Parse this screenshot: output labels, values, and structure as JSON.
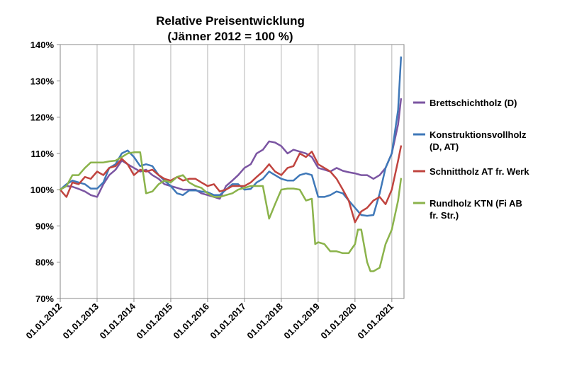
{
  "chart_data": {
    "type": "line",
    "title": "Relative Preisentwicklung",
    "subtitle": "(Jänner 2012 = 100 %)",
    "xlabel": "",
    "ylabel": "",
    "ylim": [
      70,
      140
    ],
    "yticks": [
      70,
      80,
      90,
      100,
      110,
      120,
      130,
      140
    ],
    "ytick_labels": [
      "70%",
      "80%",
      "90%",
      "100%",
      "110%",
      "120%",
      "130%",
      "140%"
    ],
    "xlim": [
      2012.0,
      2021.33
    ],
    "xticks": [
      2012,
      2013,
      2014,
      2015,
      2016,
      2017,
      2018,
      2019,
      2020,
      2021
    ],
    "xtick_labels": [
      "01.01.2012",
      "01.01.2013",
      "01.01.2014",
      "01.01.2015",
      "01.01.2016",
      "01.01.2017",
      "01.01.2018",
      "01.01.2019",
      "01.01.2020",
      "01.01.2021"
    ],
    "grid": "vertical",
    "legend_position": "right",
    "series": [
      {
        "name": "Brettschichtholz (D)",
        "color": "#7b55a2",
        "points": [
          [
            2012.0,
            100
          ],
          [
            2012.17,
            101
          ],
          [
            2012.33,
            100.8
          ],
          [
            2012.5,
            100.2
          ],
          [
            2012.67,
            99.5
          ],
          [
            2012.83,
            98.5
          ],
          [
            2013.0,
            98.0
          ],
          [
            2013.17,
            101.5
          ],
          [
            2013.33,
            104
          ],
          [
            2013.5,
            105.5
          ],
          [
            2013.67,
            108
          ],
          [
            2013.83,
            107
          ],
          [
            2014.0,
            106
          ],
          [
            2014.17,
            105
          ],
          [
            2014.33,
            105.5
          ],
          [
            2014.5,
            104
          ],
          [
            2014.67,
            103
          ],
          [
            2014.83,
            101.5
          ],
          [
            2015.0,
            101
          ],
          [
            2015.17,
            100.5
          ],
          [
            2015.33,
            100
          ],
          [
            2015.5,
            100
          ],
          [
            2015.67,
            100
          ],
          [
            2015.83,
            99
          ],
          [
            2016.0,
            98.5
          ],
          [
            2016.17,
            98
          ],
          [
            2016.33,
            97.5
          ],
          [
            2016.5,
            101
          ],
          [
            2016.67,
            102.5
          ],
          [
            2016.83,
            104
          ],
          [
            2017.0,
            106
          ],
          [
            2017.17,
            107
          ],
          [
            2017.33,
            110
          ],
          [
            2017.5,
            111
          ],
          [
            2017.67,
            113.3
          ],
          [
            2017.83,
            113
          ],
          [
            2018.0,
            112
          ],
          [
            2018.17,
            110
          ],
          [
            2018.33,
            111
          ],
          [
            2018.5,
            110.5
          ],
          [
            2018.67,
            110
          ],
          [
            2018.83,
            109
          ],
          [
            2019.0,
            106
          ],
          [
            2019.17,
            105.5
          ],
          [
            2019.33,
            105
          ],
          [
            2019.5,
            106
          ],
          [
            2019.67,
            105.2
          ],
          [
            2019.83,
            104.8
          ],
          [
            2020.0,
            104.5
          ],
          [
            2020.17,
            104
          ],
          [
            2020.33,
            104
          ],
          [
            2020.5,
            103
          ],
          [
            2020.67,
            104
          ],
          [
            2020.83,
            106
          ],
          [
            2021.0,
            110
          ],
          [
            2021.17,
            118
          ],
          [
            2021.25,
            125
          ]
        ]
      },
      {
        "name": "Konstruktionsvollholz (D, AT)",
        "color": "#3f78b8",
        "points": [
          [
            2012.0,
            100
          ],
          [
            2012.17,
            101.5
          ],
          [
            2012.33,
            102.5
          ],
          [
            2012.5,
            102
          ],
          [
            2012.67,
            101.5
          ],
          [
            2012.83,
            100.3
          ],
          [
            2013.0,
            100.3
          ],
          [
            2013.17,
            102
          ],
          [
            2013.33,
            106
          ],
          [
            2013.5,
            107
          ],
          [
            2013.67,
            110
          ],
          [
            2013.83,
            110.8
          ],
          [
            2014.0,
            109
          ],
          [
            2014.17,
            106.5
          ],
          [
            2014.33,
            107
          ],
          [
            2014.5,
            106.5
          ],
          [
            2014.67,
            104
          ],
          [
            2014.83,
            102.5
          ],
          [
            2015.0,
            101
          ],
          [
            2015.17,
            99
          ],
          [
            2015.33,
            98.5
          ],
          [
            2015.5,
            99.8
          ],
          [
            2015.67,
            99.8
          ],
          [
            2015.83,
            99.5
          ],
          [
            2016.0,
            99.3
          ],
          [
            2016.17,
            98.5
          ],
          [
            2016.33,
            98.5
          ],
          [
            2016.5,
            100
          ],
          [
            2016.67,
            101.5
          ],
          [
            2016.83,
            101.5
          ],
          [
            2017.0,
            100
          ],
          [
            2017.17,
            100.2
          ],
          [
            2017.33,
            102
          ],
          [
            2017.5,
            103
          ],
          [
            2017.67,
            105
          ],
          [
            2017.83,
            104
          ],
          [
            2018.0,
            103
          ],
          [
            2018.17,
            102.5
          ],
          [
            2018.33,
            102.5
          ],
          [
            2018.5,
            104
          ],
          [
            2018.67,
            104.5
          ],
          [
            2018.83,
            104
          ],
          [
            2019.0,
            98
          ],
          [
            2019.17,
            98
          ],
          [
            2019.33,
            98.5
          ],
          [
            2019.5,
            99.5
          ],
          [
            2019.67,
            99
          ],
          [
            2019.83,
            97
          ],
          [
            2020.0,
            95
          ],
          [
            2020.17,
            93
          ],
          [
            2020.33,
            92.8
          ],
          [
            2020.5,
            93
          ],
          [
            2020.67,
            99
          ],
          [
            2020.83,
            106
          ],
          [
            2021.0,
            110
          ],
          [
            2021.17,
            122
          ],
          [
            2021.25,
            136.5
          ]
        ]
      },
      {
        "name": "Schnittholz AT fr. Werk",
        "color": "#c0443f",
        "points": [
          [
            2012.0,
            100
          ],
          [
            2012.08,
            99
          ],
          [
            2012.17,
            98
          ],
          [
            2012.33,
            102
          ],
          [
            2012.5,
            101.5
          ],
          [
            2012.67,
            103.5
          ],
          [
            2012.83,
            103
          ],
          [
            2013.0,
            105
          ],
          [
            2013.17,
            104
          ],
          [
            2013.33,
            106
          ],
          [
            2013.5,
            106.5
          ],
          [
            2013.67,
            108.5
          ],
          [
            2013.83,
            107
          ],
          [
            2014.0,
            104
          ],
          [
            2014.17,
            105.5
          ],
          [
            2014.33,
            105
          ],
          [
            2014.5,
            105.5
          ],
          [
            2014.67,
            104
          ],
          [
            2014.83,
            103
          ],
          [
            2015.0,
            102.5
          ],
          [
            2015.17,
            103.5
          ],
          [
            2015.33,
            102.5
          ],
          [
            2015.5,
            103
          ],
          [
            2015.67,
            103
          ],
          [
            2015.83,
            102
          ],
          [
            2016.0,
            101
          ],
          [
            2016.17,
            101.5
          ],
          [
            2016.33,
            99.5
          ],
          [
            2016.5,
            100
          ],
          [
            2016.67,
            101
          ],
          [
            2016.83,
            101
          ],
          [
            2017.0,
            101
          ],
          [
            2017.17,
            102
          ],
          [
            2017.33,
            103.5
          ],
          [
            2017.5,
            105
          ],
          [
            2017.67,
            107
          ],
          [
            2017.83,
            105
          ],
          [
            2018.0,
            104
          ],
          [
            2018.17,
            106
          ],
          [
            2018.33,
            106.5
          ],
          [
            2018.5,
            110
          ],
          [
            2018.67,
            109
          ],
          [
            2018.83,
            110.5
          ],
          [
            2019.0,
            107
          ],
          [
            2019.17,
            106
          ],
          [
            2019.33,
            105
          ],
          [
            2019.5,
            103
          ],
          [
            2019.67,
            100
          ],
          [
            2019.83,
            97
          ],
          [
            2020.0,
            91
          ],
          [
            2020.17,
            94
          ],
          [
            2020.33,
            95
          ],
          [
            2020.5,
            97
          ],
          [
            2020.67,
            98
          ],
          [
            2020.83,
            96
          ],
          [
            2021.0,
            100
          ],
          [
            2021.17,
            108
          ],
          [
            2021.25,
            112
          ]
        ]
      },
      {
        "name": "Rundholz KTN (Fi AB fr. Str.)",
        "color": "#8bb34b",
        "points": [
          [
            2012.0,
            100
          ],
          [
            2012.17,
            101
          ],
          [
            2012.33,
            104
          ],
          [
            2012.5,
            104
          ],
          [
            2012.67,
            106
          ],
          [
            2012.83,
            107.5
          ],
          [
            2013.0,
            107.5
          ],
          [
            2013.17,
            107.5
          ],
          [
            2013.33,
            107.8
          ],
          [
            2013.5,
            108
          ],
          [
            2013.67,
            109
          ],
          [
            2013.83,
            110
          ],
          [
            2014.0,
            110.3
          ],
          [
            2014.17,
            110.3
          ],
          [
            2014.33,
            99
          ],
          [
            2014.5,
            99.5
          ],
          [
            2014.67,
            101.5
          ],
          [
            2014.83,
            102.5
          ],
          [
            2015.0,
            102
          ],
          [
            2015.17,
            103.5
          ],
          [
            2015.33,
            104
          ],
          [
            2015.5,
            102
          ],
          [
            2015.67,
            101
          ],
          [
            2015.83,
            100.5
          ],
          [
            2016.0,
            99
          ],
          [
            2016.17,
            98
          ],
          [
            2016.33,
            98
          ],
          [
            2016.5,
            98.5
          ],
          [
            2016.67,
            99
          ],
          [
            2016.83,
            100
          ],
          [
            2017.0,
            100.5
          ],
          [
            2017.17,
            101
          ],
          [
            2017.33,
            101
          ],
          [
            2017.5,
            101
          ],
          [
            2017.67,
            92
          ],
          [
            2017.83,
            96
          ],
          [
            2018.0,
            100
          ],
          [
            2018.17,
            100.3
          ],
          [
            2018.33,
            100.3
          ],
          [
            2018.5,
            100
          ],
          [
            2018.67,
            97
          ],
          [
            2018.83,
            97.5
          ],
          [
            2018.92,
            85
          ],
          [
            2019.0,
            85.5
          ],
          [
            2019.17,
            85
          ],
          [
            2019.33,
            83
          ],
          [
            2019.5,
            83
          ],
          [
            2019.67,
            82.5
          ],
          [
            2019.83,
            82.5
          ],
          [
            2020.0,
            85
          ],
          [
            2020.08,
            89
          ],
          [
            2020.17,
            89
          ],
          [
            2020.33,
            80
          ],
          [
            2020.42,
            77.5
          ],
          [
            2020.5,
            77.5
          ],
          [
            2020.67,
            78.5
          ],
          [
            2020.83,
            85
          ],
          [
            2021.0,
            89
          ],
          [
            2021.17,
            97
          ],
          [
            2021.25,
            103
          ]
        ]
      }
    ]
  }
}
